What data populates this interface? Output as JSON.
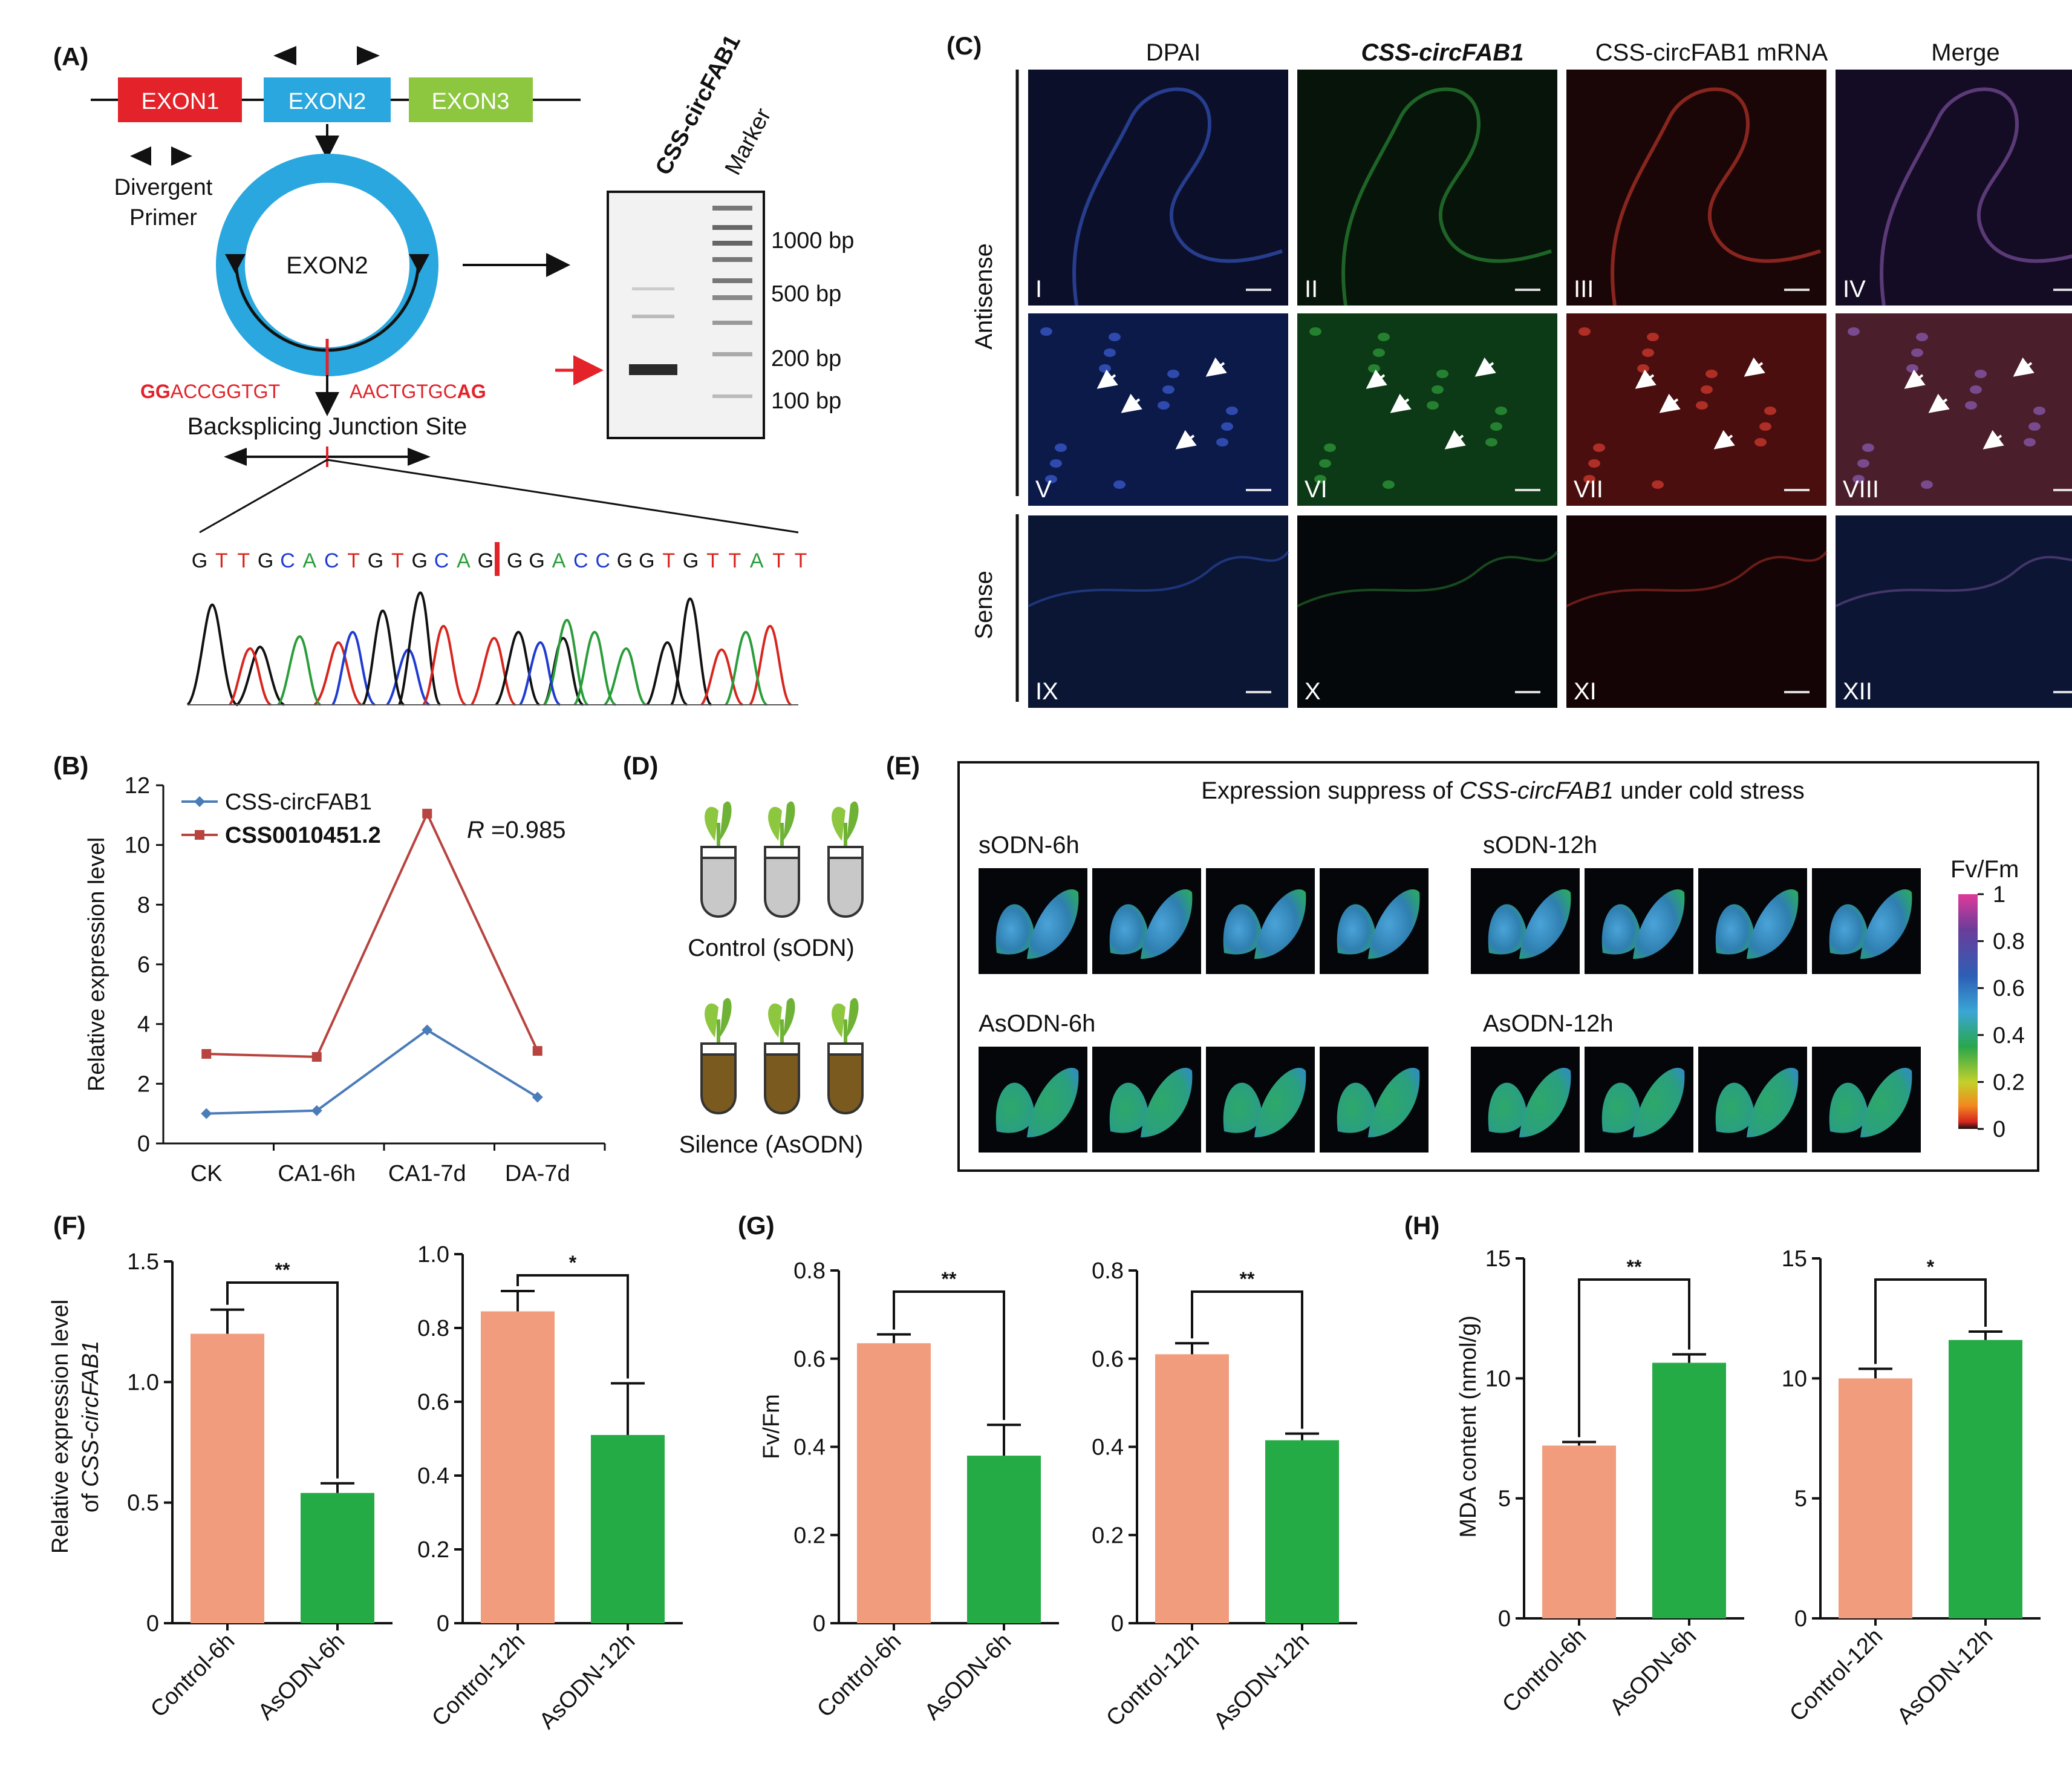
{
  "panels": {
    "A": {
      "label": "(A)",
      "exons": [
        "EXON1",
        "EXON2",
        "EXON3"
      ],
      "divergent_primer": [
        "Divergent",
        "Primer"
      ],
      "circle_label": "EXON2",
      "junction_left": {
        "bold": "GG",
        "rest": "ACCGGTGT"
      },
      "junction_right": {
        "rest": "AACTGTGC",
        "bold": "AG"
      },
      "backsplicing": "Backsplicing Junction Site",
      "gel_lanes": [
        "CSS-circFAB1",
        "Marker"
      ],
      "gel_markers": [
        "1000 bp",
        "500 bp",
        "200 bp",
        "100 bp"
      ],
      "sequence": "GTTGCACTGTGCAGGGACCGGTGTTATT"
    },
    "B": {
      "label": "(B)"
    },
    "C": {
      "label": "(C)",
      "columns": [
        "DPAI",
        "CSS-circFAB1",
        "CSS-circFAB1 mRNA",
        "Merge"
      ],
      "row_groups": [
        "Antisense",
        "Sense"
      ],
      "roman": [
        "I",
        "II",
        "III",
        "IV",
        "V",
        "VI",
        "VII",
        "VIII",
        "IX",
        "X",
        "XI",
        "XII"
      ]
    },
    "D": {
      "label": "(D)",
      "control": "Control (sODN)",
      "silence": "Silence (AsODN)"
    },
    "E": {
      "label": "(E)",
      "title_pre": "Expression suppress of ",
      "title_gene": "CSS-circFAB1",
      "title_post": " under cold stress",
      "groups": [
        "sODN-6h",
        "sODN-12h",
        "AsODN-6h",
        "AsODN-12h"
      ],
      "colorbar_title": "Fv/Fm",
      "colorbar_ticks": [
        "1",
        "0.8",
        "0.6",
        "0.4",
        "0.2",
        "0"
      ]
    },
    "F": {
      "label": "(F)",
      "ylabel_line1": "Relative expression level",
      "ylabel_pre": "of ",
      "ylabel_gene": "CSS-circFAB1"
    },
    "G": {
      "label": "(G)",
      "ylabel": "Fv/Fm"
    },
    "H": {
      "label": "(H)",
      "ylabel": "MDA content (nmol/g)"
    }
  },
  "colors": {
    "control": "#f09c7d",
    "asodn": "#25ab45",
    "series_circ": "#4a7cb8",
    "series_lnc": "#b84440",
    "exon1": "#e3222a",
    "exon2": "#29a7de",
    "exon3": "#8dc63f",
    "red_text": "#e3222a"
  },
  "chart_data": [
    {
      "panel": "B",
      "type": "line",
      "categories": [
        "CK",
        "CA1-6h",
        "CA1-7d",
        "DA-7d"
      ],
      "series": [
        {
          "name": "CSS-circFAB1",
          "values": [
            1.0,
            1.1,
            3.8,
            1.55
          ]
        },
        {
          "name": "CSS0010451.2",
          "values": [
            3.0,
            2.9,
            11.05,
            3.1
          ]
        }
      ],
      "ylabel": "Relative expression level",
      "ylim": [
        0,
        12
      ],
      "yticks": [
        0,
        2,
        4,
        6,
        8,
        10,
        12
      ],
      "annotation_pre": "R",
      "annotation_post": " =0.985"
    },
    {
      "panel": "F-1",
      "type": "bar",
      "categories": [
        "Control-6h",
        "AsODN-6h"
      ],
      "values": [
        1.2,
        0.54
      ],
      "errors": [
        0.1,
        0.04
      ],
      "ylim": [
        0,
        1.5
      ],
      "yticks": [
        "0",
        "0.5",
        "1.0",
        "1.5"
      ],
      "significance": "**"
    },
    {
      "panel": "F-2",
      "type": "bar",
      "categories": [
        "Control-12h",
        "AsODN-12h"
      ],
      "values": [
        0.845,
        0.51
      ],
      "errors": [
        0.055,
        0.14
      ],
      "ylim": [
        0,
        1.0
      ],
      "yticks": [
        "0",
        "0.2",
        "0.4",
        "0.6",
        "0.8",
        "1.0"
      ],
      "significance": "*"
    },
    {
      "panel": "G-1",
      "type": "bar",
      "categories": [
        "Control-6h",
        "AsODN-6h"
      ],
      "values": [
        0.635,
        0.38
      ],
      "errors": [
        0.02,
        0.07
      ],
      "ylim": [
        0,
        0.8
      ],
      "yticks": [
        "0",
        "0.2",
        "0.4",
        "0.6",
        "0.8"
      ],
      "significance": "**"
    },
    {
      "panel": "G-2",
      "type": "bar",
      "categories": [
        "Control-12h",
        "AsODN-12h"
      ],
      "values": [
        0.61,
        0.415
      ],
      "errors": [
        0.025,
        0.015
      ],
      "ylim": [
        0,
        0.8
      ],
      "yticks": [
        "0",
        "0.2",
        "0.4",
        "0.6",
        "0.8"
      ],
      "significance": "**"
    },
    {
      "panel": "H-1",
      "type": "bar",
      "categories": [
        "Control-6h",
        "AsODN-6h"
      ],
      "values": [
        7.2,
        10.65
      ],
      "errors": [
        0.15,
        0.35
      ],
      "ylim": [
        0,
        15
      ],
      "yticks": [
        "0",
        "5",
        "10",
        "15"
      ],
      "significance": "**"
    },
    {
      "panel": "H-2",
      "type": "bar",
      "categories": [
        "Control-12h",
        "AsODN-12h"
      ],
      "values": [
        10.0,
        11.6
      ],
      "errors": [
        0.4,
        0.35
      ],
      "ylim": [
        0,
        15
      ],
      "yticks": [
        "0",
        "5",
        "10",
        "15"
      ],
      "significance": "*"
    }
  ]
}
